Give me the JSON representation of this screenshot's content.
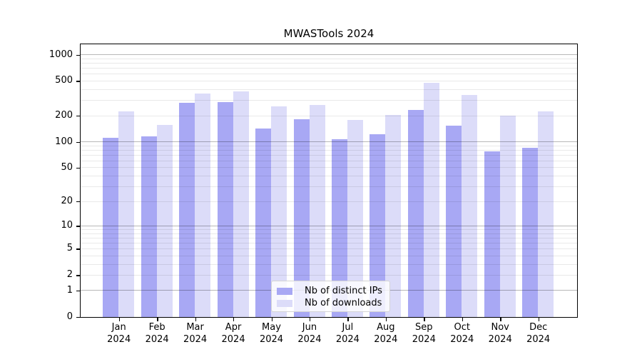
{
  "chart_data": {
    "type": "bar",
    "title": "MWASTools 2024",
    "categories": [
      "Jan",
      "Feb",
      "Mar",
      "Apr",
      "May",
      "Jun",
      "Jul",
      "Aug",
      "Sep",
      "Oct",
      "Nov",
      "Dec"
    ],
    "x_year": "2024",
    "series": [
      {
        "name": "Nb of distinct IPs",
        "color": "#a8a8f4",
        "values": [
          112,
          117,
          284,
          289,
          144,
          183,
          107,
          123,
          233,
          154,
          78,
          86
        ]
      },
      {
        "name": "Nb of downloads",
        "color": "#dcdcf9",
        "values": [
          224,
          159,
          362,
          384,
          259,
          270,
          179,
          204,
          477,
          349,
          202,
          225
        ]
      }
    ],
    "yscale": "log1p",
    "yticks": [
      0,
      1,
      2,
      5,
      10,
      20,
      50,
      100,
      200,
      500,
      1000
    ],
    "ylim": [
      0,
      1400
    ],
    "grid": "horizontal major on decades, light minor log gridlines, drawn over bars",
    "legend_position": "inside lower center",
    "colors": {
      "axis": "#000000",
      "grid_major": "#b8b8b8",
      "grid_minor": "#e8e8e8",
      "legend_border": "#d4d4d4",
      "background": "#ffffff"
    }
  }
}
